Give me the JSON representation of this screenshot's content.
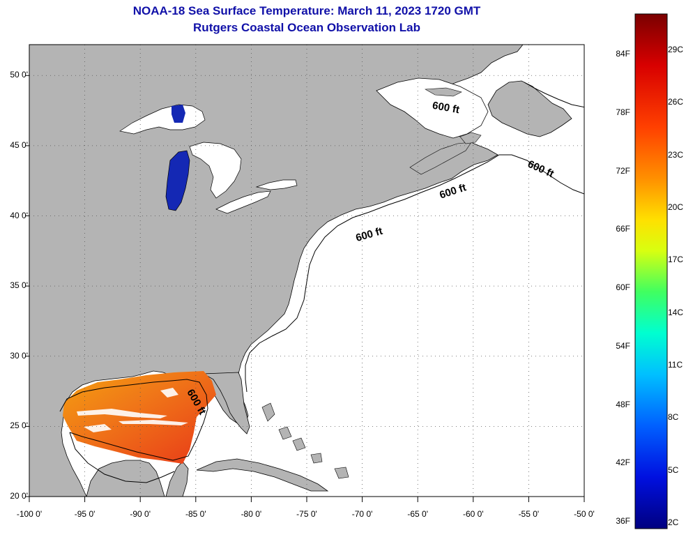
{
  "title_line1": "NOAA-18 Sea Surface Temperature:  March 11, 2023 1720 GMT",
  "title_line2": "Rutgers Coastal Ocean Observation Lab",
  "lat_labels": [
    "50 0'",
    "45 0'",
    "40 0'",
    "35 0'",
    "30 0'",
    "25 0'",
    "20 0'"
  ],
  "lat_values": [
    50,
    45,
    40,
    35,
    30,
    25,
    20
  ],
  "lon_labels": [
    "-100 0'",
    "-95 0'",
    "-90 0'",
    "-85 0'",
    "-80 0'",
    "-75 0'",
    "-70 0'",
    "-65 0'",
    "-60 0'",
    "-55 0'",
    "-50 0'"
  ],
  "lon_values": [
    -100,
    -95,
    -90,
    -85,
    -80,
    -75,
    -70,
    -65,
    -60,
    -55,
    -50
  ],
  "contour_labels": [
    "600 ft",
    "600 ft",
    "600 ft",
    "600 ft",
    "600 ft"
  ],
  "colorbar": {
    "fahrenheit_labels": [
      "84F",
      "78F",
      "72F",
      "66F",
      "60F",
      "54F",
      "48F",
      "42F",
      "36F"
    ],
    "celsius_labels": [
      "29C",
      "26C",
      "23C",
      "20C",
      "17C",
      "14C",
      "11C",
      "8C",
      "5C",
      "2C"
    ]
  },
  "colors": {
    "land": "#b4b4b4",
    "water": "#ffffff",
    "title": "#1010a8",
    "cold_lake": "#1428b4"
  }
}
